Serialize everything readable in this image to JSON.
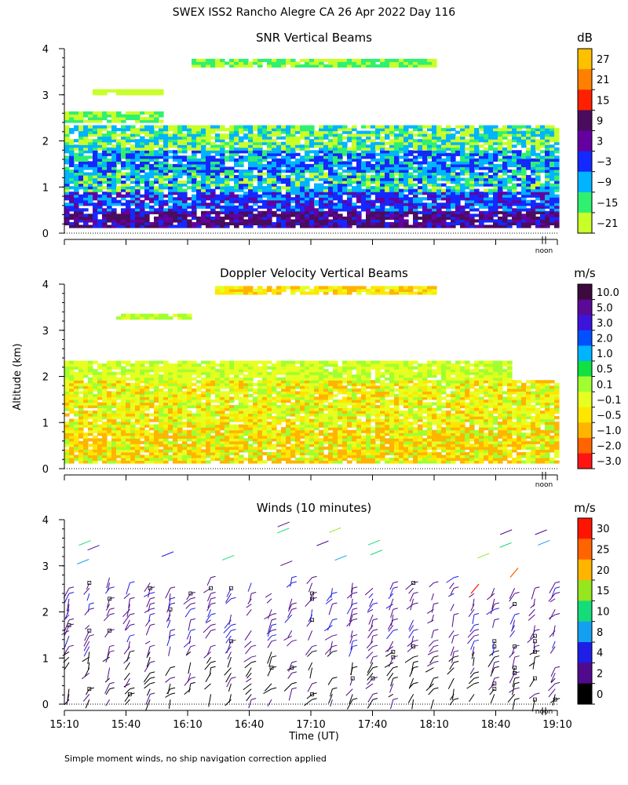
{
  "figure": {
    "title": "SWEX ISS2 Rancho Alegre CA  26 Apr 2022 Day 116",
    "ylabel": "Altitude (km)",
    "xlabel": "Time (UT)",
    "noon_label": "noon",
    "footnote": "Simple moment winds, no ship navigation correction applied"
  },
  "chart_data": [
    {
      "type": "heatmap",
      "title": "SNR Vertical Beams",
      "unit": "dB",
      "ylim": [
        0,
        4
      ],
      "y_ticks": [
        "0",
        "1",
        "2",
        "3",
        "4"
      ],
      "x_range_ut": [
        "15:10",
        "19:10"
      ],
      "colorbar": {
        "labels": [
          "27",
          "21",
          "15",
          "9",
          "3",
          "−3",
          "−9",
          "−15",
          "−21"
        ],
        "colors": [
          "#ffc000",
          "#ff8000",
          "#ff2000",
          "#4a0c5c",
          "#6400a0",
          "#1428ff",
          "#00b4ff",
          "#30f070",
          "#c8ff28"
        ]
      }
    },
    {
      "type": "heatmap",
      "title": "Doppler Velocity Vertical Beams",
      "unit": "m/s",
      "ylim": [
        0,
        4
      ],
      "y_ticks": [
        "0",
        "1",
        "2",
        "3",
        "4"
      ],
      "x_range_ut": [
        "15:10",
        "19:10"
      ],
      "colorbar": {
        "labels": [
          "10.0",
          "5.0",
          "3.0",
          "2.0",
          "1.0",
          "0.5",
          "0.1",
          "−0.1",
          "−0.5",
          "−1.0",
          "−2.0",
          "−3.0"
        ],
        "colors": [
          "#3c0a3c",
          "#5a0a96",
          "#3c14dc",
          "#0050ff",
          "#00b4ff",
          "#10e040",
          "#a0ff30",
          "#e6ff20",
          "#ffe600",
          "#ffb400",
          "#ff6400",
          "#ff1414"
        ]
      }
    },
    {
      "type": "scatter",
      "title": "Winds (10 minutes)",
      "unit": "m/s",
      "ylim": [
        0,
        4
      ],
      "y_ticks": [
        "0",
        "1",
        "2",
        "3",
        "4"
      ],
      "x_ticks": [
        "15:10",
        "15:40",
        "16:10",
        "16:40",
        "17:10",
        "17:40",
        "18:10",
        "18:40",
        "19:10"
      ],
      "colorbar": {
        "labels": [
          "30",
          "25",
          "20",
          "15",
          "10",
          "8",
          "4",
          "2",
          "0"
        ],
        "colors": [
          "#ff1400",
          "#ff6400",
          "#ffb400",
          "#96e61e",
          "#14dc78",
          "#14a0f0",
          "#1e1ee6",
          "#500a8c",
          "#000000"
        ]
      }
    }
  ]
}
